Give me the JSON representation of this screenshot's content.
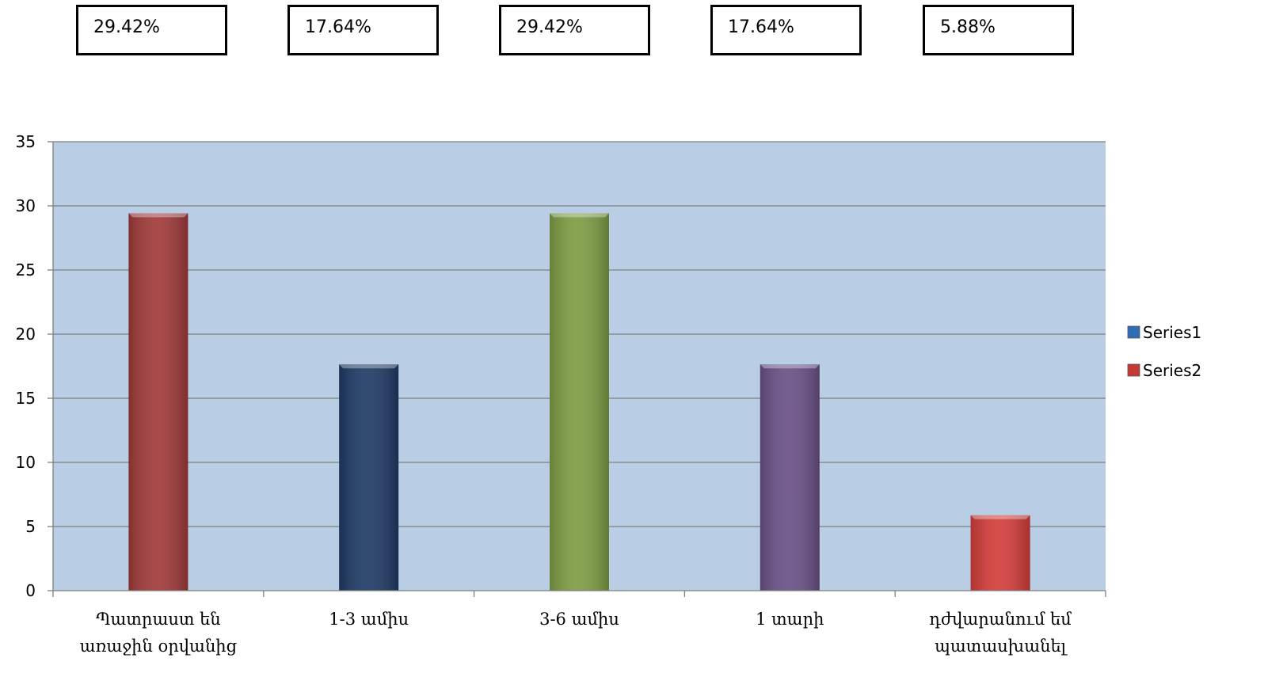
{
  "percent_boxes": [
    "29.42%",
    "17.64%",
    "29.42%",
    "17.64%",
    "5.88%"
  ],
  "chart_data": {
    "type": "bar",
    "categories": [
      [
        "Պատրաստ են",
        "առաջին օրվանից"
      ],
      [
        "1-3 ամիս"
      ],
      [
        "3-6 ամիս"
      ],
      [
        "1 տարի"
      ],
      [
        "դժվարանում եմ",
        "պատասխանել"
      ]
    ],
    "values": [
      29.42,
      17.64,
      29.42,
      17.64,
      5.88
    ],
    "bar_colors": [
      "#a13a3a",
      "#1f3b66",
      "#7e9d44",
      "#6a5187",
      "#d43e3a"
    ],
    "plot_background": "#b9cde4",
    "ylim": [
      0,
      35
    ],
    "yticks": [
      0,
      5,
      10,
      15,
      20,
      25,
      30,
      35
    ],
    "grid": true,
    "legend": {
      "placement": "right",
      "entries": [
        {
          "name": "Series1",
          "color": "#2f6db5"
        },
        {
          "name": "Series2",
          "color": "#c43a36"
        }
      ]
    },
    "title": "",
    "xlabel": "",
    "ylabel": ""
  }
}
